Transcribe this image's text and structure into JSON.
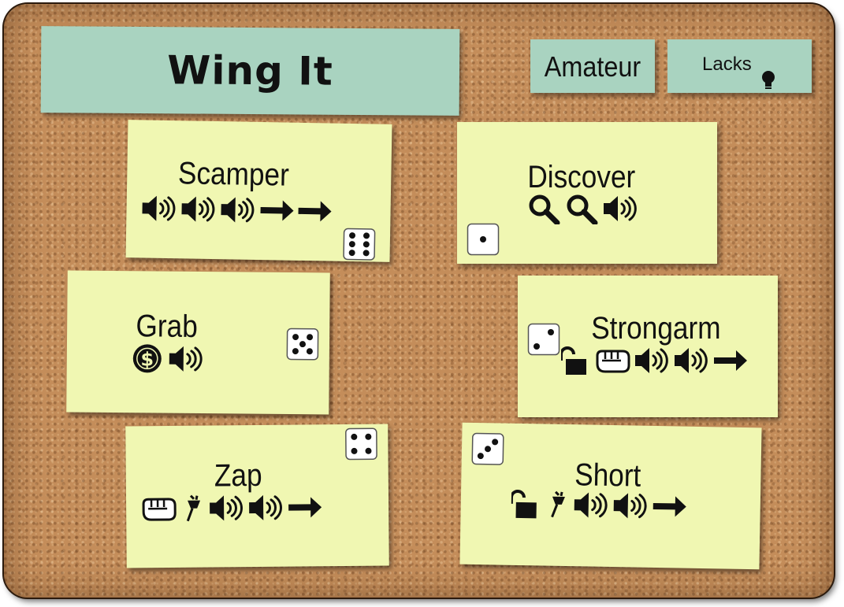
{
  "title": "Wing It",
  "level": "Amateur",
  "lacks": {
    "label": "Lacks",
    "icon": "lightbulb-icon"
  },
  "colors": {
    "teal_note": "#a9d3c0",
    "card_note": "#f0f7b2",
    "cork": "#c48d5a",
    "ink": "#111111"
  },
  "cards": [
    {
      "name": "Scamper",
      "die": 6,
      "icons": [
        "noise-icon",
        "noise-icon",
        "noise-icon",
        "move-arrow-icon",
        "move-arrow-icon"
      ]
    },
    {
      "name": "Discover",
      "die": 1,
      "icons": [
        "search-icon",
        "search-icon",
        "noise-icon"
      ]
    },
    {
      "name": "Grab",
      "die": 5,
      "icons": [
        "loot-coin-icon",
        "noise-icon"
      ]
    },
    {
      "name": "Strongarm",
      "die": 2,
      "icons": [
        "unlock-icon",
        "fist-icon",
        "noise-icon",
        "noise-icon",
        "move-arrow-icon"
      ]
    },
    {
      "name": "Zap",
      "die": 4,
      "icons": [
        "fist-icon",
        "power-plug-icon",
        "noise-icon",
        "noise-icon",
        "move-arrow-icon"
      ]
    },
    {
      "name": "Short",
      "die": 3,
      "icons": [
        "unlock-icon",
        "power-plug-icon",
        "noise-icon",
        "noise-icon",
        "move-arrow-icon"
      ]
    }
  ]
}
